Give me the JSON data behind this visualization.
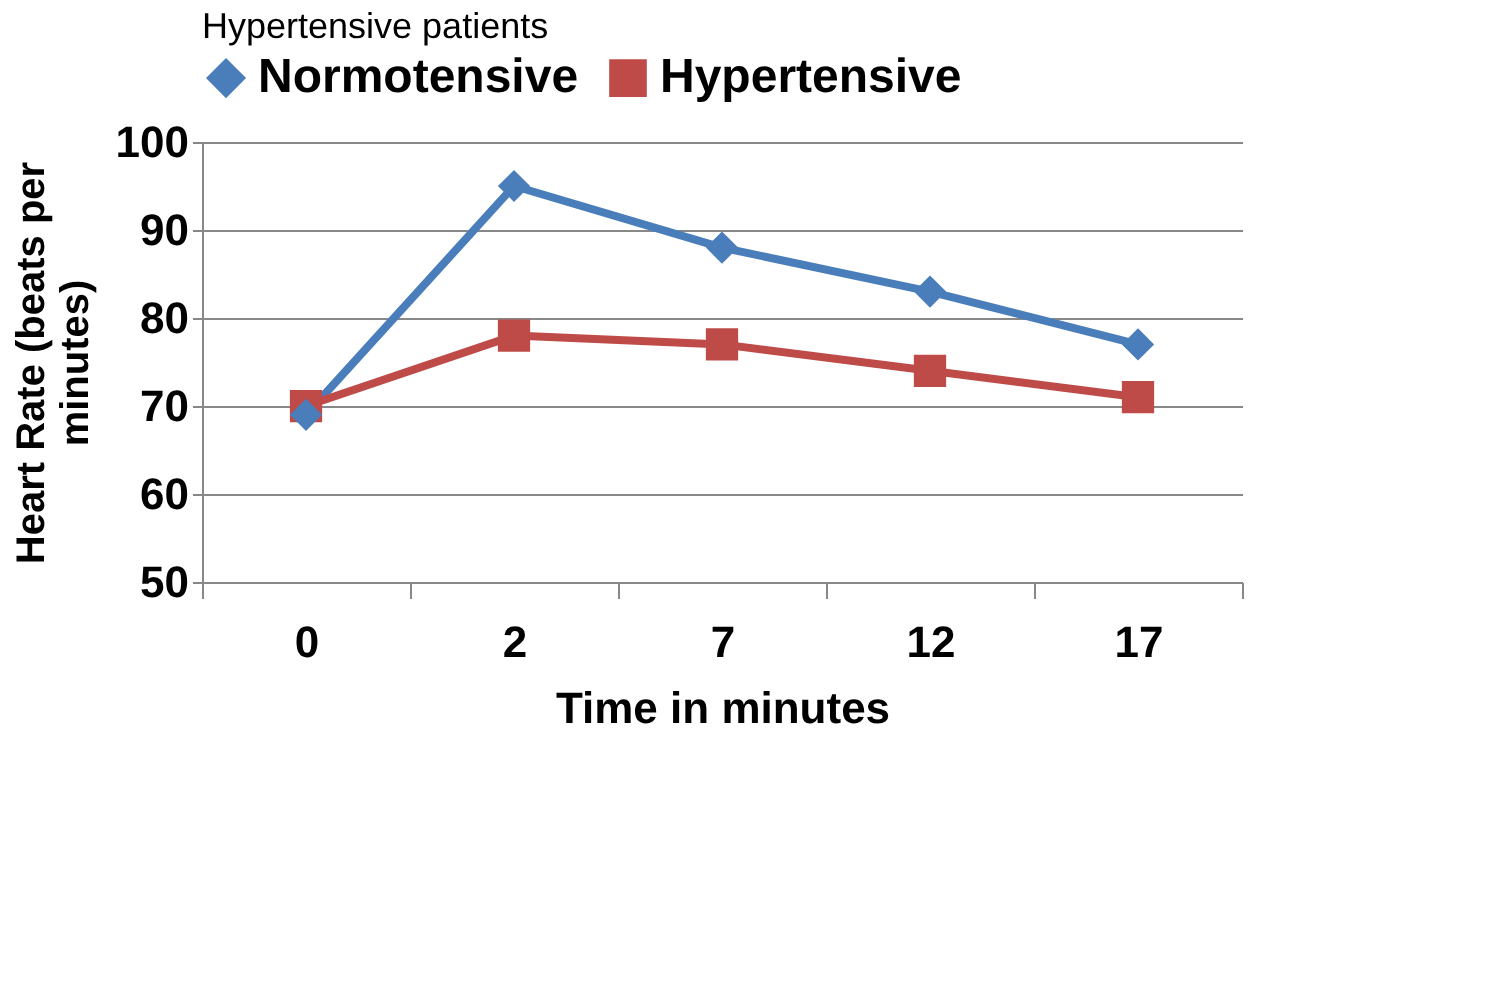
{
  "chart_data": {
    "type": "line",
    "title": "Hypertensive patients",
    "xlabel": "Time in minutes",
    "ylabel": "Heart Rate (beats per minutes)",
    "categories": [
      "0",
      "2",
      "7",
      "12",
      "17"
    ],
    "series": [
      {
        "name": "Normotensive",
        "color": "#4a7ebb",
        "marker": "diamond",
        "values": [
          69,
          95,
          88,
          83,
          77
        ]
      },
      {
        "name": "Hypertensive",
        "color": "#be4b48",
        "marker": "square",
        "values": [
          70,
          78,
          77,
          74,
          71
        ]
      }
    ],
    "ylim": [
      50,
      100
    ],
    "yticks": [
      50,
      60,
      70,
      80,
      90,
      100
    ],
    "grid": "y",
    "legend": "top"
  }
}
